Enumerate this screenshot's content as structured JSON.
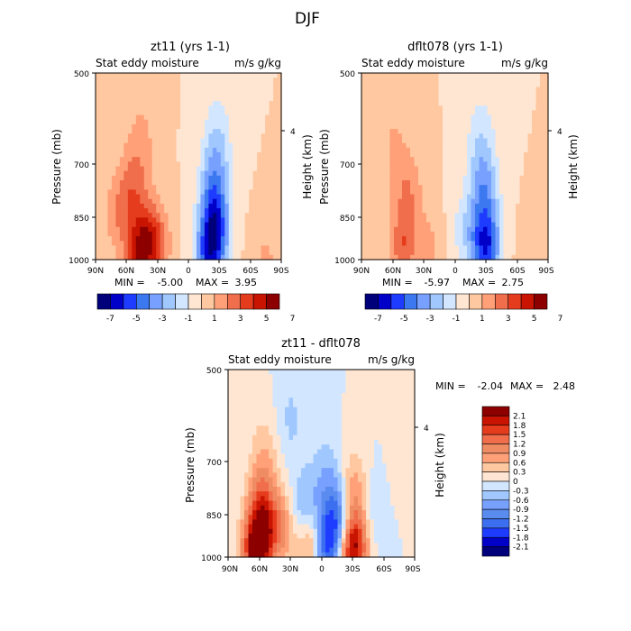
{
  "title": "DJF",
  "colors": {
    "main_scale": [
      "#00007a",
      "#0000c8",
      "#1e3cff",
      "#3c78f0",
      "#78a0ff",
      "#a0c8ff",
      "#d2e6ff",
      "#ffe6d2",
      "#ffc8a0",
      "#ffa078",
      "#f06e4b",
      "#e63c1e",
      "#c81400",
      "#8c0000"
    ],
    "diff_scale": [
      "#00007a",
      "#0000c8",
      "#1e3cff",
      "#3c6ef0",
      "#5a8cf0",
      "#78a0ff",
      "#a0c8ff",
      "#d2e6ff",
      "#ffe6d2",
      "#ffc8a0",
      "#ffa078",
      "#f08c64",
      "#f06e4b",
      "#e63c1e",
      "#c81400",
      "#8c0000"
    ]
  },
  "chart_data": [
    {
      "type": "heatmap",
      "title": "zt11 (yrs 1-1)",
      "subtitle_left": "Stat eddy moisture",
      "subtitle_right": "m/s g/kg",
      "xlabel": "",
      "ylabel": "Pressure (mb)",
      "ylabel_right": "Height (km)",
      "x_ticks": [
        "90N",
        "60N",
        "30N",
        "0",
        "30S",
        "60S",
        "90S"
      ],
      "y_ticks": [
        "500",
        "700",
        "850",
        "1000"
      ],
      "y_right_ticks": [
        "4"
      ],
      "ylim": [
        1000,
        500
      ],
      "stats": {
        "min_label": "MIN =",
        "min": "-5.00",
        "max_label": "MAX =",
        "max": "3.95"
      },
      "colorbar": {
        "levels": [
          -7,
          -6,
          -5,
          -4,
          -3,
          -2,
          -1,
          0,
          1,
          2,
          3,
          4,
          5,
          6,
          7
        ],
        "labels": [
          "-7",
          "-5",
          "-3",
          "-1",
          "1",
          "3",
          "5",
          "7"
        ]
      },
      "features": [
        {
          "lat": 50,
          "p": 1000,
          "value": 3.5
        },
        {
          "lat": 40,
          "p": 920,
          "value": 3.0
        },
        {
          "lat": 55,
          "p": 780,
          "value": 2.2
        },
        {
          "lat": 45,
          "p": 650,
          "value": 1.2
        },
        {
          "lat": 30,
          "p": 950,
          "value": 2.0
        },
        {
          "lat": 70,
          "p": 850,
          "value": 1.4
        },
        {
          "lat": -25,
          "p": 900,
          "value": -5.0
        },
        {
          "lat": -25,
          "p": 780,
          "value": -3.0
        },
        {
          "lat": -28,
          "p": 650,
          "value": -1.8
        },
        {
          "lat": -20,
          "p": 1000,
          "value": -4.0
        },
        {
          "lat": -75,
          "p": 1000,
          "value": 1.2
        }
      ]
    },
    {
      "type": "heatmap",
      "title": "dflt078 (yrs 1-1)",
      "subtitle_left": "Stat eddy moisture",
      "subtitle_right": "m/s g/kg",
      "xlabel": "",
      "ylabel": "Pressure (mb)",
      "ylabel_right": "Height (km)",
      "x_ticks": [
        "90N",
        "60N",
        "30N",
        "0",
        "30S",
        "60S",
        "90S"
      ],
      "y_ticks": [
        "500",
        "700",
        "850",
        "1000"
      ],
      "y_right_ticks": [
        "4"
      ],
      "ylim": [
        1000,
        500
      ],
      "stats": {
        "min_label": "MIN =",
        "min": "-5.97",
        "max_label": "MAX =",
        "max": "2.75"
      },
      "colorbar": {
        "levels": [
          -7,
          -6,
          -5,
          -4,
          -3,
          -2,
          -1,
          0,
          1,
          2,
          3,
          4,
          5,
          6,
          7
        ],
        "labels": [
          "-7",
          "-5",
          "-3",
          "-1",
          "1",
          "3",
          "5",
          "7"
        ]
      },
      "features": [
        {
          "lat": 50,
          "p": 950,
          "value": 2.7
        },
        {
          "lat": 45,
          "p": 780,
          "value": 1.8
        },
        {
          "lat": 60,
          "p": 650,
          "value": 1.0
        },
        {
          "lat": 25,
          "p": 950,
          "value": 1.2
        },
        {
          "lat": -30,
          "p": 950,
          "value": -5.9
        },
        {
          "lat": -28,
          "p": 780,
          "value": -3.0
        },
        {
          "lat": -25,
          "p": 650,
          "value": -1.5
        },
        {
          "lat": -10,
          "p": 900,
          "value": -1.5
        },
        {
          "lat": -75,
          "p": 1000,
          "value": 0.8
        }
      ]
    },
    {
      "type": "heatmap",
      "title": "zt11 - dflt078",
      "subtitle_left": "Stat eddy moisture",
      "subtitle_right": "m/s g/kg",
      "xlabel": "",
      "ylabel": "Pressure (mb)",
      "ylabel_right": "Height (km)",
      "x_ticks": [
        "90N",
        "60N",
        "30N",
        "0",
        "30S",
        "60S",
        "90S"
      ],
      "y_ticks": [
        "500",
        "700",
        "850",
        "1000"
      ],
      "y_right_ticks": [
        "4"
      ],
      "ylim": [
        1000,
        500
      ],
      "stats": {
        "min_label": "MIN =",
        "min": "-2.04",
        "max_label": "MAX =",
        "max": "2.48"
      },
      "colorbar": {
        "levels": [
          -2.1,
          -1.8,
          -1.5,
          -1.2,
          -0.9,
          -0.6,
          -0.3,
          0,
          0.3,
          0.6,
          0.9,
          1.2,
          1.5,
          1.8,
          2.1
        ],
        "labels": [
          "2.1",
          "1.8",
          "1.5",
          "1.2",
          "0.9",
          "0.6",
          "0.3",
          "0",
          "-0.3",
          "-0.6",
          "-0.9",
          "-1.2",
          "-1.5",
          "-1.8",
          "-2.1"
        ]
      },
      "features": [
        {
          "lat": 62,
          "p": 980,
          "value": 2.4
        },
        {
          "lat": 58,
          "p": 850,
          "value": 1.4
        },
        {
          "lat": 55,
          "p": 700,
          "value": 0.5
        },
        {
          "lat": 40,
          "p": 900,
          "value": 1.0
        },
        {
          "lat": -30,
          "p": 960,
          "value": 2.4
        },
        {
          "lat": -30,
          "p": 800,
          "value": 1.0
        },
        {
          "lat": 8,
          "p": 950,
          "value": 1.6
        },
        {
          "lat": -3,
          "p": 960,
          "value": -2.0
        },
        {
          "lat": -18,
          "p": 870,
          "value": -1.5
        },
        {
          "lat": -5,
          "p": 750,
          "value": -0.5
        },
        {
          "lat": 15,
          "p": 850,
          "value": -0.8
        },
        {
          "lat": -50,
          "p": 850,
          "value": -0.35
        },
        {
          "lat": 30,
          "p": 600,
          "value": -0.35
        },
        {
          "lat": -80,
          "p": 700,
          "value": 0.3
        }
      ]
    }
  ]
}
